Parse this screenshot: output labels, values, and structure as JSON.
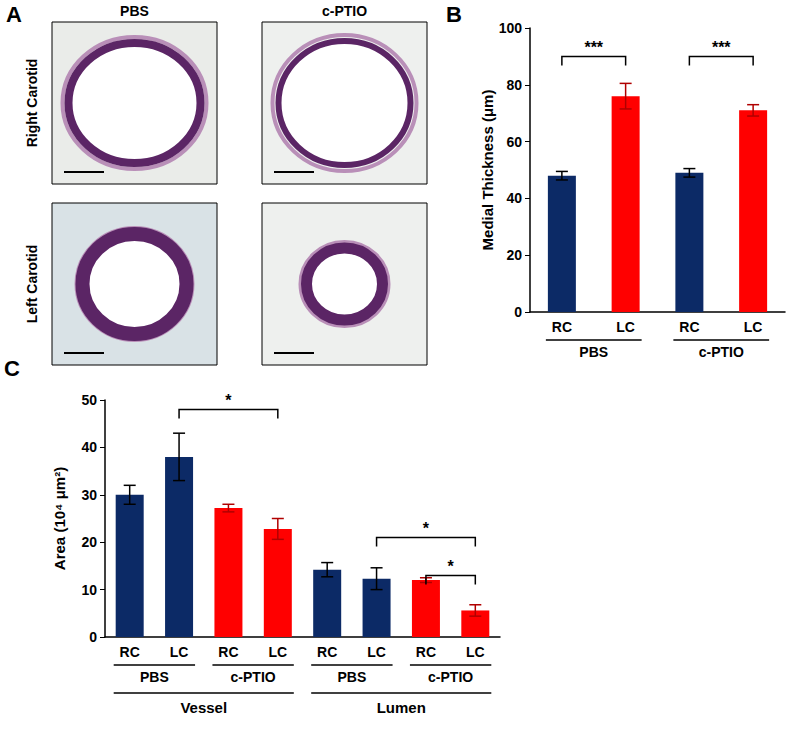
{
  "panel_a": {
    "label": "A",
    "columns": [
      "PBS",
      "c-PTIO"
    ],
    "rows": [
      "Right Carotid",
      "Left Carotid"
    ]
  },
  "chart_data": [
    {
      "panel": "B",
      "type": "bar",
      "y_label": "Medial Thickness (μm)",
      "categories": [
        "RC",
        "LC",
        "RC",
        "LC"
      ],
      "groups": [
        {
          "name": "PBS",
          "start": 0,
          "end": 1
        },
        {
          "name": "c-PTIO",
          "start": 2,
          "end": 3
        }
      ],
      "values": [
        48,
        76,
        49,
        71
      ],
      "errors": [
        1.5,
        4.5,
        1.5,
        2
      ],
      "colors": [
        "#0c2a66",
        "#ff0000",
        "#0c2a66",
        "#ff0000"
      ],
      "ylim": [
        0,
        100
      ],
      "yticks": [
        0,
        20,
        40,
        60,
        80,
        100
      ],
      "grid": false,
      "annotations": [
        {
          "text": "***",
          "from": 0,
          "to": 1,
          "y": 90
        },
        {
          "text": "***",
          "from": 2,
          "to": 3,
          "y": 90
        }
      ]
    },
    {
      "panel": "C",
      "type": "bar",
      "y_label": "Area (10⁴ μm²)",
      "categories": [
        "RC",
        "LC",
        "RC",
        "LC",
        "RC",
        "LC",
        "RC",
        "LC"
      ],
      "groups": [
        {
          "name": "PBS",
          "start": 0,
          "end": 1
        },
        {
          "name": "c-PTIO",
          "start": 2,
          "end": 3
        },
        {
          "name": "PBS",
          "start": 4,
          "end": 5
        },
        {
          "name": "c-PTIO",
          "start": 6,
          "end": 7
        }
      ],
      "supergroups": [
        {
          "name": "Vessel",
          "start": 0,
          "end": 3
        },
        {
          "name": "Lumen",
          "start": 4,
          "end": 7
        }
      ],
      "values": [
        30,
        38,
        27.2,
        22.8,
        14.2,
        12.3,
        12,
        5.6
      ],
      "errors": [
        2,
        5,
        0.8,
        2.2,
        1.5,
        2.3,
        0.5,
        1.2
      ],
      "colors": [
        "#0c2a66",
        "#0c2a66",
        "#ff0000",
        "#ff0000",
        "#0c2a66",
        "#0c2a66",
        "#ff0000",
        "#ff0000"
      ],
      "ylim": [
        0,
        50
      ],
      "yticks": [
        0,
        10,
        20,
        30,
        40,
        50
      ],
      "grid": false,
      "annotations": [
        {
          "text": "*",
          "from": 1,
          "to": 3,
          "y": 48
        },
        {
          "text": "*",
          "from": 5,
          "to": 7,
          "y": 21
        },
        {
          "text": "*",
          "from": 6,
          "to": 7,
          "y": 13
        }
      ]
    }
  ]
}
